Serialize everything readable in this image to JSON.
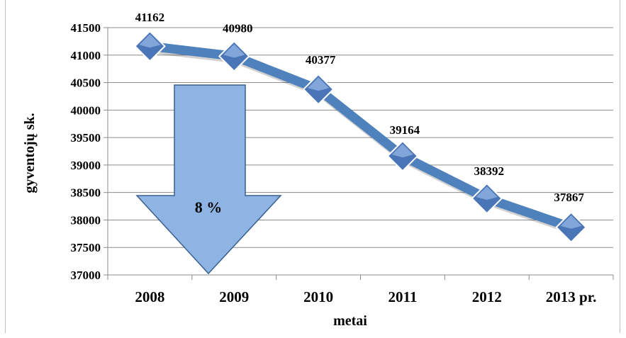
{
  "chart_data": {
    "type": "line",
    "categories": [
      "2008",
      "2009",
      "2010",
      "2011",
      "2012",
      "2013 pr."
    ],
    "series": [
      {
        "values": [
          41162,
          40980,
          40377,
          39164,
          38392,
          37867
        ]
      }
    ],
    "data_labels": [
      "41162",
      "40980",
      "40377",
      "39164",
      "38392",
      "37867"
    ],
    "xlabel": "metai",
    "ylabel": "gyventojų sk.",
    "ylim": [
      37000,
      41500
    ],
    "yticks": [
      37000,
      37500,
      38000,
      38500,
      39000,
      39500,
      40000,
      40500,
      41000,
      41500
    ],
    "grid": true,
    "annotation": {
      "label": "8 %",
      "shape": "down-arrow",
      "color": "#8db4e2"
    },
    "line_color": "#4f81bd",
    "marker": "diamond"
  }
}
